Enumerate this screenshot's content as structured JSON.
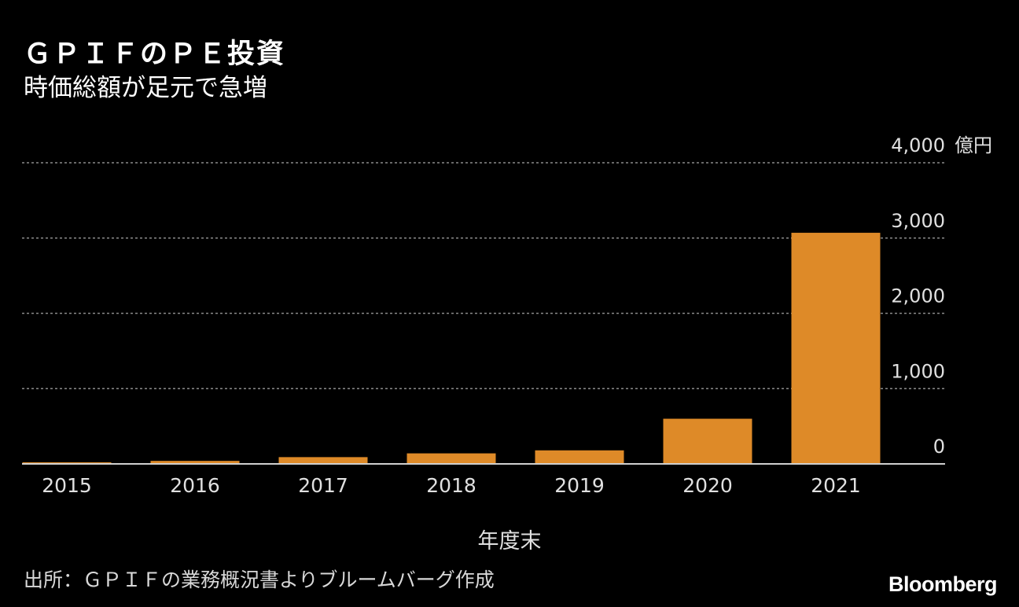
{
  "header": {
    "title": "ＧＰＩＦのＰＥ投資",
    "subtitle": "時価総額が足元で急増"
  },
  "footer": {
    "source": "出所：ＧＰＩＦの業務概況書よりブルームバーグ作成",
    "logo": "Bloomberg"
  },
  "colors": {
    "background": "#000000",
    "bar": "#DE8A28",
    "grid": "#8a8a8a",
    "text": "#e0e0e0"
  },
  "chart_data": {
    "type": "bar",
    "categories": [
      "2015",
      "2016",
      "2017",
      "2018",
      "2019",
      "2020",
      "2021"
    ],
    "values": [
      15,
      40,
      90,
      140,
      180,
      600,
      3070
    ],
    "xlabel": "年度末",
    "ylabel": "",
    "unit": "億円",
    "ylim": [
      0,
      4000
    ],
    "yticks": [
      0,
      1000,
      2000,
      3000,
      4000
    ],
    "ytick_labels": [
      "0",
      "1,000",
      "2,000",
      "3,000",
      "4,000"
    ],
    "grid": true,
    "legend": "none"
  }
}
